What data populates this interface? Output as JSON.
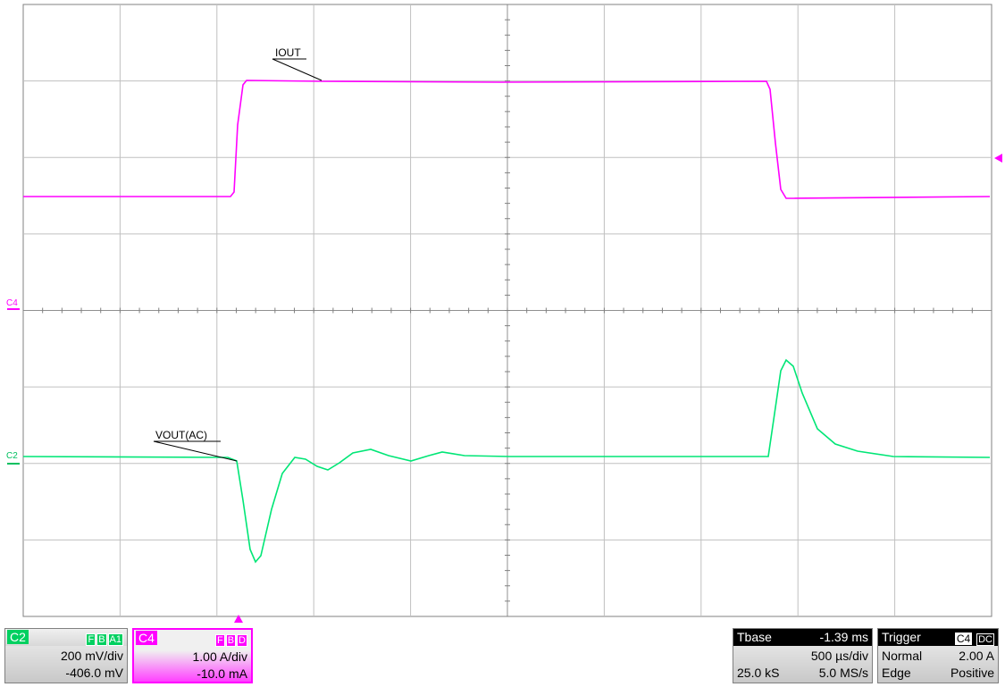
{
  "traces": {
    "iout_label": "IOUT",
    "vout_label": "VOUT(AC)",
    "c4_marker": "C4",
    "c2_marker": "C2"
  },
  "channels": [
    {
      "name": "C2",
      "flags": [
        "F",
        "B",
        "A1"
      ],
      "scale": "200 mV/div",
      "offset": "-406.0 mV"
    },
    {
      "name": "C4",
      "flags": [
        "F",
        "B",
        "D"
      ],
      "scale": "1.00 A/div",
      "offset": "-10.0 mA"
    }
  ],
  "timebase": {
    "label": "Tbase",
    "delay": "-1.39 ms",
    "scale": "500 µs/div",
    "samples": "25.0 kS",
    "rate": "5.0 MS/s"
  },
  "trigger": {
    "label": "Trigger",
    "source": "C4",
    "coupling": "DC",
    "level": "2.00 A",
    "mode": "Normal",
    "type": "Edge",
    "slope": "Positive"
  }
}
